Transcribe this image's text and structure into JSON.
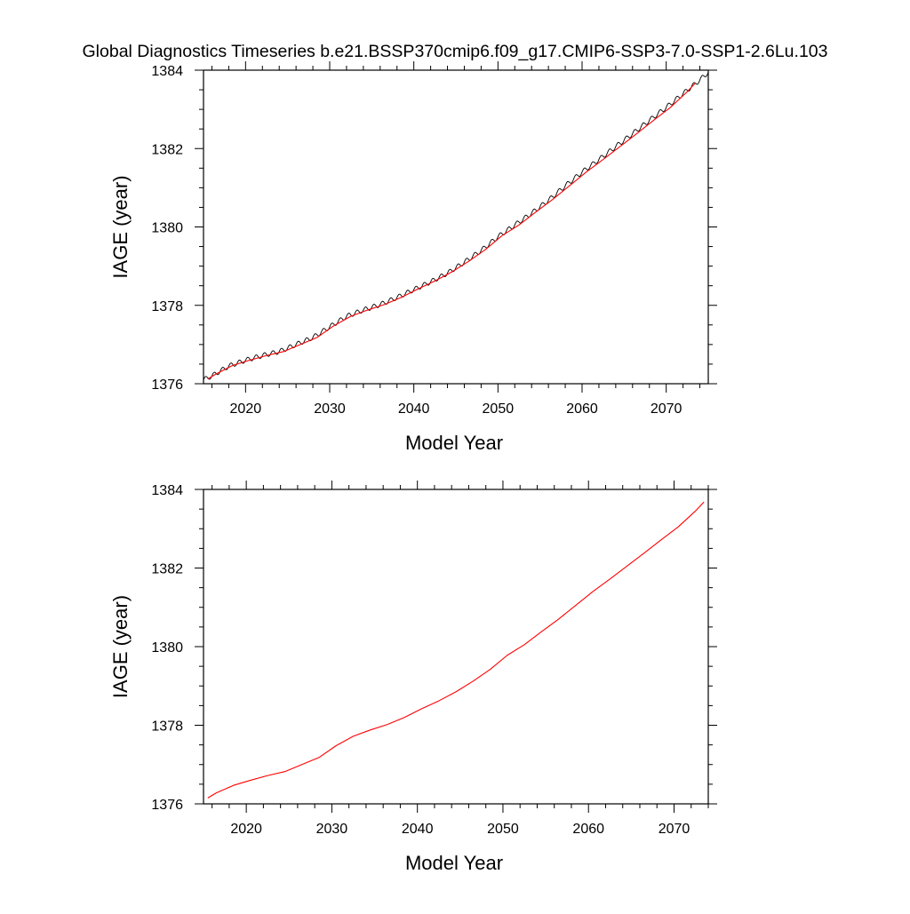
{
  "figure": {
    "title": "Global Diagnostics Timeseries b.e21.BSSP370cmip6.f09_g17.CMIP6-SSP3-7.0-SSP1-2.6Lu.103"
  },
  "chart_data": [
    {
      "type": "line",
      "xlabel": "Model Year",
      "ylabel": "IAGE (year)",
      "xlim": [
        2015,
        2075
      ],
      "ylim": [
        1376,
        1384
      ],
      "xticks": [
        2020,
        2030,
        2040,
        2050,
        2060,
        2070
      ],
      "xtick_labels": [
        "2020",
        "2030",
        "2040",
        "2050",
        "2060",
        "2070"
      ],
      "yticks": [
        1376,
        1378,
        1380,
        1382,
        1384
      ],
      "ytick_labels": [
        "1376",
        "1378",
        "1380",
        "1382",
        "1384"
      ],
      "grid": false,
      "legend": "none",
      "series": [
        {
          "sampling": "monthly",
          "color": "#000000",
          "seasonal_amplitude": 0.06,
          "x": [
            2015,
            2016,
            2018,
            2020,
            2022,
            2024,
            2026,
            2028,
            2030,
            2032,
            2034,
            2036,
            2038,
            2040,
            2042,
            2044,
            2046,
            2048,
            2050,
            2052,
            2054,
            2056,
            2058,
            2060,
            2062,
            2064,
            2066,
            2068,
            2070,
            2072,
            2074,
            2075
          ],
          "y": [
            1376.1,
            1376.2,
            1376.45,
            1376.6,
            1376.72,
            1376.82,
            1377.0,
            1377.18,
            1377.45,
            1377.72,
            1377.88,
            1378.02,
            1378.2,
            1378.4,
            1378.6,
            1378.82,
            1379.1,
            1379.4,
            1379.75,
            1380.05,
            1380.35,
            1380.68,
            1381.05,
            1381.4,
            1381.72,
            1382.05,
            1382.38,
            1382.72,
            1383.05,
            1383.4,
            1383.75,
            1383.95
          ]
        },
        {
          "sampling": "annual",
          "color": "#ff0000",
          "x": [
            2015.5,
            2016.5,
            2018.5,
            2020.5,
            2022.5,
            2024.5,
            2026.5,
            2028.5,
            2030.5,
            2032.5,
            2034.5,
            2036.5,
            2038.5,
            2040.5,
            2042.5,
            2044.5,
            2046.5,
            2048.5,
            2050.5,
            2052.5,
            2054.5,
            2056.5,
            2058.5,
            2060.5,
            2062.5,
            2064.5,
            2066.5,
            2068.5,
            2070.5,
            2072.5,
            2073.5
          ],
          "y": [
            1376.12,
            1376.25,
            1376.47,
            1376.6,
            1376.72,
            1376.82,
            1377.0,
            1377.18,
            1377.48,
            1377.72,
            1377.88,
            1378.02,
            1378.2,
            1378.42,
            1378.62,
            1378.85,
            1379.12,
            1379.42,
            1379.78,
            1380.05,
            1380.38,
            1380.7,
            1381.05,
            1381.4,
            1381.72,
            1382.05,
            1382.38,
            1382.72,
            1383.05,
            1383.45,
            1383.68
          ]
        }
      ]
    },
    {
      "type": "line",
      "xlabel": "Model Year",
      "ylabel": "IAGE (year)",
      "xlim": [
        2015,
        2074
      ],
      "ylim": [
        1376,
        1384
      ],
      "xticks": [
        2020,
        2030,
        2040,
        2050,
        2060,
        2070
      ],
      "xtick_labels": [
        "2020",
        "2030",
        "2040",
        "2050",
        "2060",
        "2070"
      ],
      "yticks": [
        1376,
        1378,
        1380,
        1382,
        1384
      ],
      "ytick_labels": [
        "1376",
        "1378",
        "1380",
        "1382",
        "1384"
      ],
      "grid": false,
      "legend": "none",
      "series": [
        {
          "sampling": "annual",
          "color": "#ff0000",
          "x": [
            2015.5,
            2016.5,
            2018.5,
            2020.5,
            2022.5,
            2024.5,
            2026.5,
            2028.5,
            2030.5,
            2032.5,
            2034.5,
            2036.5,
            2038.5,
            2040.5,
            2042.5,
            2044.5,
            2046.5,
            2048.5,
            2050.5,
            2052.5,
            2054.5,
            2056.5,
            2058.5,
            2060.5,
            2062.5,
            2064.5,
            2066.5,
            2068.5,
            2070.5,
            2072.5,
            2073.5
          ],
          "y": [
            1376.15,
            1376.28,
            1376.47,
            1376.6,
            1376.72,
            1376.82,
            1377.0,
            1377.18,
            1377.48,
            1377.72,
            1377.88,
            1378.02,
            1378.2,
            1378.42,
            1378.62,
            1378.85,
            1379.12,
            1379.42,
            1379.78,
            1380.05,
            1380.38,
            1380.7,
            1381.05,
            1381.4,
            1381.72,
            1382.05,
            1382.38,
            1382.72,
            1383.05,
            1383.45,
            1383.68
          ]
        }
      ]
    }
  ]
}
